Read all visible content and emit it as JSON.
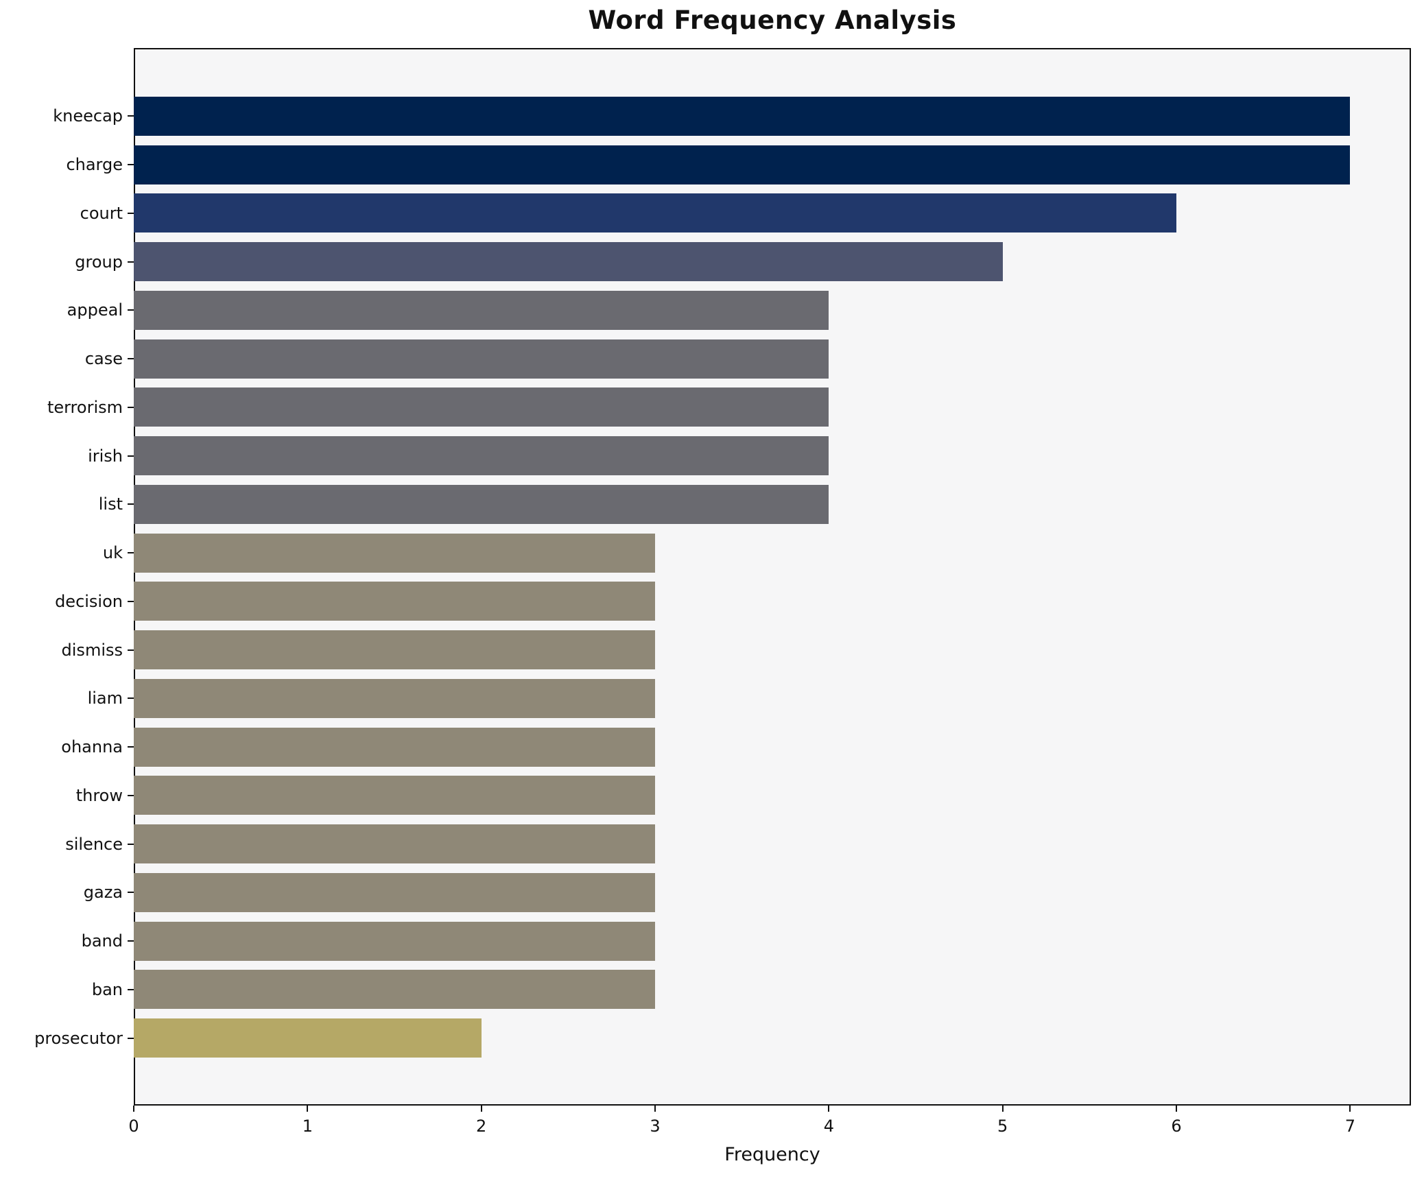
{
  "title": "Word Frequency Analysis",
  "chart_data": {
    "type": "bar",
    "orientation": "horizontal",
    "title": "Word Frequency Analysis",
    "xlabel": "Frequency",
    "ylabel": "",
    "categories": [
      "kneecap",
      "charge",
      "court",
      "group",
      "appeal",
      "case",
      "terrorism",
      "irish",
      "list",
      "uk",
      "decision",
      "dismiss",
      "liam",
      "ohanna",
      "throw",
      "silence",
      "gaza",
      "band",
      "ban",
      "prosecutor"
    ],
    "values": [
      7,
      7,
      6,
      5,
      4,
      4,
      4,
      4,
      4,
      3,
      3,
      3,
      3,
      3,
      3,
      3,
      3,
      3,
      3,
      2
    ],
    "xlim": [
      0,
      7.35
    ],
    "xticks": [
      0,
      1,
      2,
      3,
      4,
      5,
      6,
      7
    ],
    "grid": false,
    "legend": null,
    "colors": {
      "by_value": {
        "7": "#00224e",
        "6": "#21386b",
        "5": "#4d546f",
        "4": "#6a6a70",
        "3": "#8f8877",
        "2": "#b5a866"
      },
      "plot_background": "#f6f6f7",
      "figure_background": "#ffffff",
      "spine": "#111111",
      "text": "#111111"
    }
  }
}
